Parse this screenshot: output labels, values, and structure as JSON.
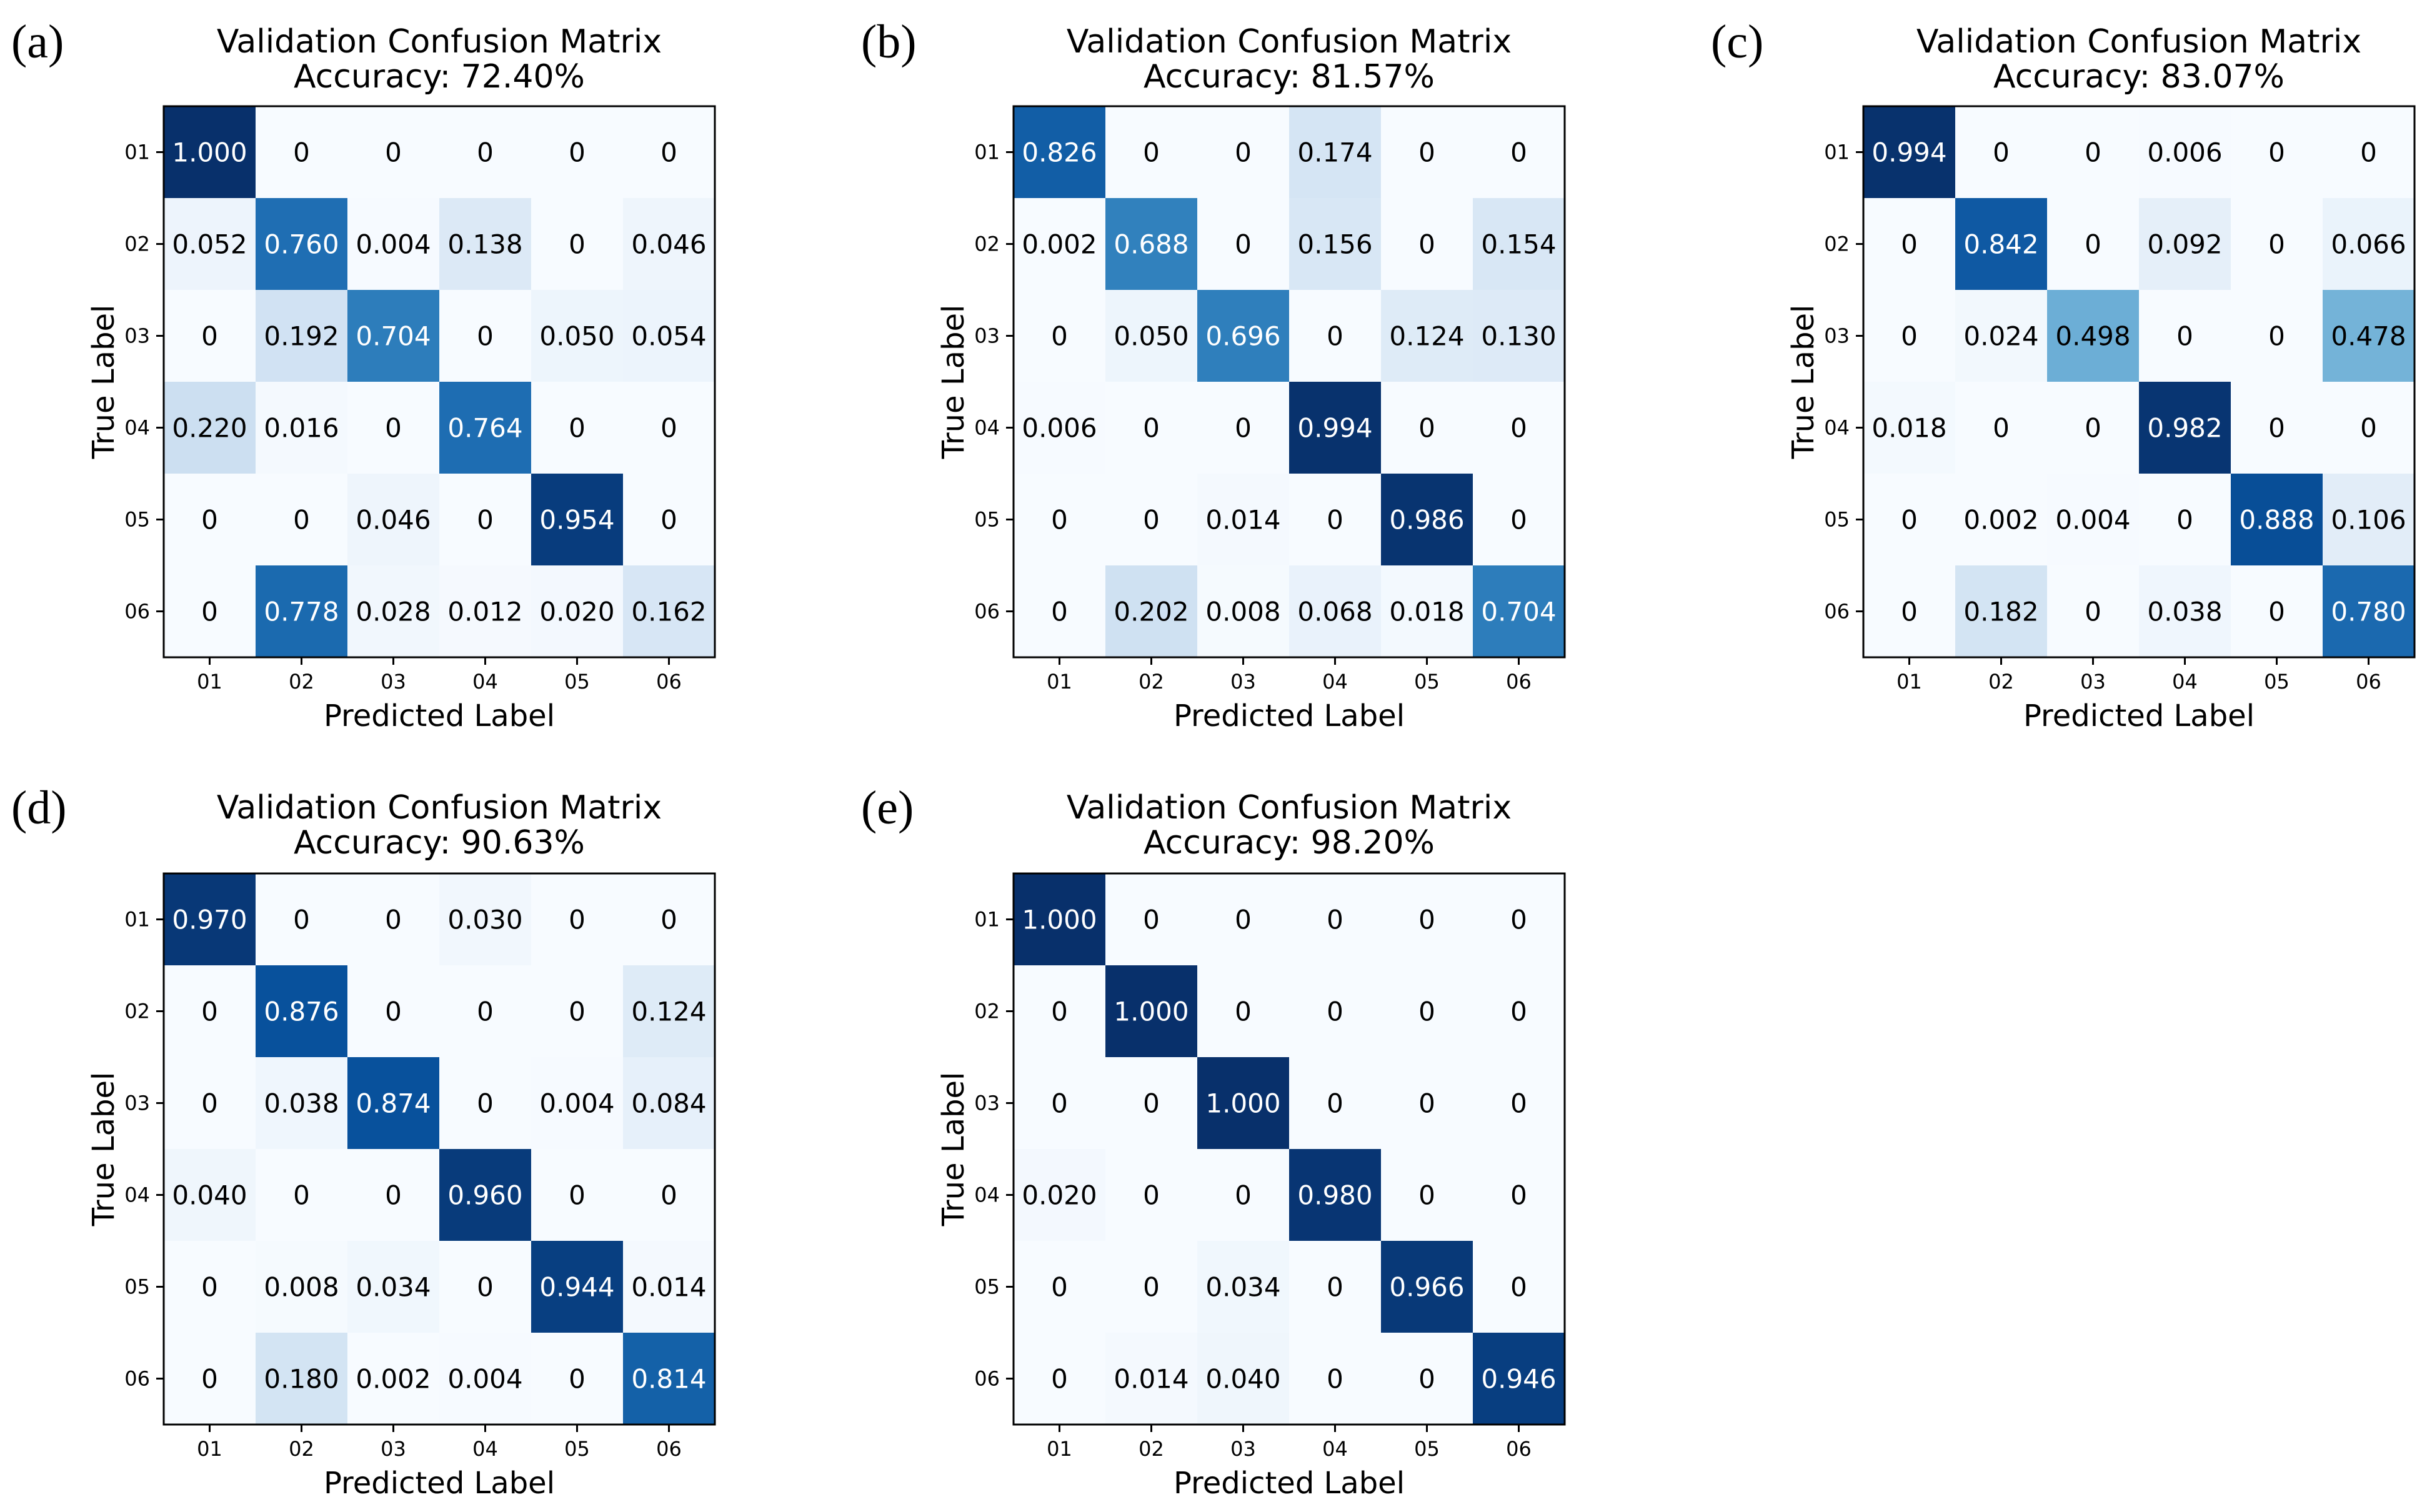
{
  "figure": {
    "panel_count": 5,
    "colormap": "Blues",
    "colors": {
      "lightest": "#f7fbff",
      "darkest": "#08306b",
      "text_dark": "#000000",
      "text_light": "#ffffff"
    }
  },
  "chart_data": [
    {
      "type": "heatmap",
      "panel_label": "(a)",
      "title": "Validation Confusion Matrix",
      "subtitle": "Accuracy: 72.40%",
      "xlabel": "Predicted Label",
      "ylabel": "True Label",
      "x_categories": [
        "01",
        "02",
        "03",
        "04",
        "05",
        "06"
      ],
      "y_categories": [
        "01",
        "02",
        "03",
        "04",
        "05",
        "06"
      ],
      "values": [
        [
          1.0,
          0,
          0,
          0,
          0,
          0
        ],
        [
          0.052,
          0.76,
          0.004,
          0.138,
          0,
          0.046
        ],
        [
          0,
          0.192,
          0.704,
          0,
          0.05,
          0.054
        ],
        [
          0.22,
          0.016,
          0,
          0.764,
          0,
          0
        ],
        [
          0,
          0,
          0.046,
          0,
          0.954,
          0
        ],
        [
          0,
          0.778,
          0.028,
          0.012,
          0.02,
          0.162
        ]
      ],
      "labels": [
        [
          "1.000",
          "0",
          "0",
          "0",
          "0",
          "0"
        ],
        [
          "0.052",
          "0.760",
          "0.004",
          "0.138",
          "0",
          "0.046"
        ],
        [
          "0",
          "0.192",
          "0.704",
          "0",
          "0.050",
          "0.054"
        ],
        [
          "0.220",
          "0.016",
          "0",
          "0.764",
          "0",
          "0"
        ],
        [
          "0",
          "0",
          "0.046",
          "0",
          "0.954",
          "0"
        ],
        [
          "0",
          "0.778",
          "0.028",
          "0.012",
          "0.020",
          "0.162"
        ]
      ]
    },
    {
      "type": "heatmap",
      "panel_label": "(b)",
      "title": "Validation Confusion Matrix",
      "subtitle": "Accuracy: 81.57%",
      "xlabel": "Predicted Label",
      "ylabel": "True Label",
      "x_categories": [
        "01",
        "02",
        "03",
        "04",
        "05",
        "06"
      ],
      "y_categories": [
        "01",
        "02",
        "03",
        "04",
        "05",
        "06"
      ],
      "values": [
        [
          0.826,
          0,
          0,
          0.174,
          0,
          0
        ],
        [
          0.002,
          0.688,
          0,
          0.156,
          0,
          0.154
        ],
        [
          0,
          0.05,
          0.696,
          0,
          0.124,
          0.13
        ],
        [
          0.006,
          0,
          0,
          0.994,
          0,
          0
        ],
        [
          0,
          0,
          0.014,
          0,
          0.986,
          0
        ],
        [
          0,
          0.202,
          0.008,
          0.068,
          0.018,
          0.704
        ]
      ],
      "labels": [
        [
          "0.826",
          "0",
          "0",
          "0.174",
          "0",
          "0"
        ],
        [
          "0.002",
          "0.688",
          "0",
          "0.156",
          "0",
          "0.154"
        ],
        [
          "0",
          "0.050",
          "0.696",
          "0",
          "0.124",
          "0.130"
        ],
        [
          "0.006",
          "0",
          "0",
          "0.994",
          "0",
          "0"
        ],
        [
          "0",
          "0",
          "0.014",
          "0",
          "0.986",
          "0"
        ],
        [
          "0",
          "0.202",
          "0.008",
          "0.068",
          "0.018",
          "0.704"
        ]
      ]
    },
    {
      "type": "heatmap",
      "panel_label": "(c)",
      "title": "Validation Confusion Matrix",
      "subtitle": "Accuracy: 83.07%",
      "xlabel": "Predicted Label",
      "ylabel": "True Label",
      "x_categories": [
        "01",
        "02",
        "03",
        "04",
        "05",
        "06"
      ],
      "y_categories": [
        "01",
        "02",
        "03",
        "04",
        "05",
        "06"
      ],
      "values": [
        [
          0.994,
          0,
          0,
          0.006,
          0,
          0
        ],
        [
          0,
          0.842,
          0,
          0.092,
          0,
          0.066
        ],
        [
          0,
          0.024,
          0.498,
          0,
          0,
          0.478
        ],
        [
          0.018,
          0,
          0,
          0.982,
          0,
          0
        ],
        [
          0,
          0.002,
          0.004,
          0,
          0.888,
          0.106
        ],
        [
          0,
          0.182,
          0,
          0.038,
          0,
          0.78
        ]
      ],
      "labels": [
        [
          "0.994",
          "0",
          "0",
          "0.006",
          "0",
          "0"
        ],
        [
          "0",
          "0.842",
          "0",
          "0.092",
          "0",
          "0.066"
        ],
        [
          "0",
          "0.024",
          "0.498",
          "0",
          "0",
          "0.478"
        ],
        [
          "0.018",
          "0",
          "0",
          "0.982",
          "0",
          "0"
        ],
        [
          "0",
          "0.002",
          "0.004",
          "0",
          "0.888",
          "0.106"
        ],
        [
          "0",
          "0.182",
          "0",
          "0.038",
          "0",
          "0.780"
        ]
      ]
    },
    {
      "type": "heatmap",
      "panel_label": "(d)",
      "title": "Validation Confusion Matrix",
      "subtitle": "Accuracy: 90.63%",
      "xlabel": "Predicted Label",
      "ylabel": "True Label",
      "x_categories": [
        "01",
        "02",
        "03",
        "04",
        "05",
        "06"
      ],
      "y_categories": [
        "01",
        "02",
        "03",
        "04",
        "05",
        "06"
      ],
      "values": [
        [
          0.97,
          0,
          0,
          0.03,
          0,
          0
        ],
        [
          0,
          0.876,
          0,
          0,
          0,
          0.124
        ],
        [
          0,
          0.038,
          0.874,
          0,
          0.004,
          0.084
        ],
        [
          0.04,
          0,
          0,
          0.96,
          0,
          0
        ],
        [
          0,
          0.008,
          0.034,
          0,
          0.944,
          0.014
        ],
        [
          0,
          0.18,
          0.002,
          0.004,
          0,
          0.814
        ]
      ],
      "labels": [
        [
          "0.970",
          "0",
          "0",
          "0.030",
          "0",
          "0"
        ],
        [
          "0",
          "0.876",
          "0",
          "0",
          "0",
          "0.124"
        ],
        [
          "0",
          "0.038",
          "0.874",
          "0",
          "0.004",
          "0.084"
        ],
        [
          "0.040",
          "0",
          "0",
          "0.960",
          "0",
          "0"
        ],
        [
          "0",
          "0.008",
          "0.034",
          "0",
          "0.944",
          "0.014"
        ],
        [
          "0",
          "0.180",
          "0.002",
          "0.004",
          "0",
          "0.814"
        ]
      ]
    },
    {
      "type": "heatmap",
      "panel_label": "(e)",
      "title": "Validation Confusion Matrix",
      "subtitle": "Accuracy: 98.20%",
      "xlabel": "Predicted Label",
      "ylabel": "True Label",
      "x_categories": [
        "01",
        "02",
        "03",
        "04",
        "05",
        "06"
      ],
      "y_categories": [
        "01",
        "02",
        "03",
        "04",
        "05",
        "06"
      ],
      "values": [
        [
          1.0,
          0,
          0,
          0,
          0,
          0
        ],
        [
          0,
          1.0,
          0,
          0,
          0,
          0
        ],
        [
          0,
          0,
          1.0,
          0,
          0,
          0
        ],
        [
          0.02,
          0,
          0,
          0.98,
          0,
          0
        ],
        [
          0,
          0,
          0.034,
          0,
          0.966,
          0
        ],
        [
          0,
          0.014,
          0.04,
          0,
          0,
          0.946
        ]
      ],
      "labels": [
        [
          "1.000",
          "0",
          "0",
          "0",
          "0",
          "0"
        ],
        [
          "0",
          "1.000",
          "0",
          "0",
          "0",
          "0"
        ],
        [
          "0",
          "0",
          "1.000",
          "0",
          "0",
          "0"
        ],
        [
          "0.020",
          "0",
          "0",
          "0.980",
          "0",
          "0"
        ],
        [
          "0",
          "0",
          "0.034",
          "0",
          "0.966",
          "0"
        ],
        [
          "0",
          "0.014",
          "0.040",
          "0",
          "0",
          "0.946"
        ]
      ]
    }
  ]
}
